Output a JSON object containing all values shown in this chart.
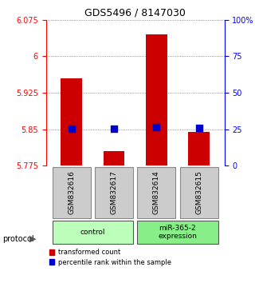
{
  "title": "GDS5496 / 8147030",
  "samples": [
    "GSM832616",
    "GSM832617",
    "GSM832614",
    "GSM832615"
  ],
  "groups": [
    "control",
    "control",
    "miR-365-2\nexpression",
    "miR-365-2\nexpression"
  ],
  "group_labels": [
    "control",
    "miR-365-2\nexpression"
  ],
  "group_colors": [
    "#ccffcc",
    "#99ff99"
  ],
  "bar_values": [
    5.955,
    5.805,
    6.045,
    5.845
  ],
  "dot_values": [
    5.852,
    5.852,
    5.855,
    5.853
  ],
  "bar_base": 5.775,
  "ylim_left": [
    5.775,
    6.075
  ],
  "yticks_left": [
    5.775,
    5.85,
    5.925,
    6.0,
    6.075
  ],
  "ytick_labels_left": [
    "5.775",
    "5.85",
    "5.925",
    "6",
    "6.075"
  ],
  "ylim_right": [
    0,
    100
  ],
  "yticks_right": [
    0,
    25,
    50,
    75,
    100
  ],
  "ytick_labels_right": [
    "0",
    "25",
    "50",
    "75",
    "100%"
  ],
  "bar_color": "#cc0000",
  "dot_color": "#0000cc",
  "bar_width": 0.5,
  "grid_color": "#555555",
  "bg_color": "#ffffff",
  "sample_box_color": "#cccccc",
  "sample_box_edge": "#888888",
  "group_box_colors": [
    "#bbffbb",
    "#88ee88"
  ],
  "legend_red_label": "transformed count",
  "legend_blue_label": "percentile rank within the sample",
  "protocol_label": "protocol"
}
